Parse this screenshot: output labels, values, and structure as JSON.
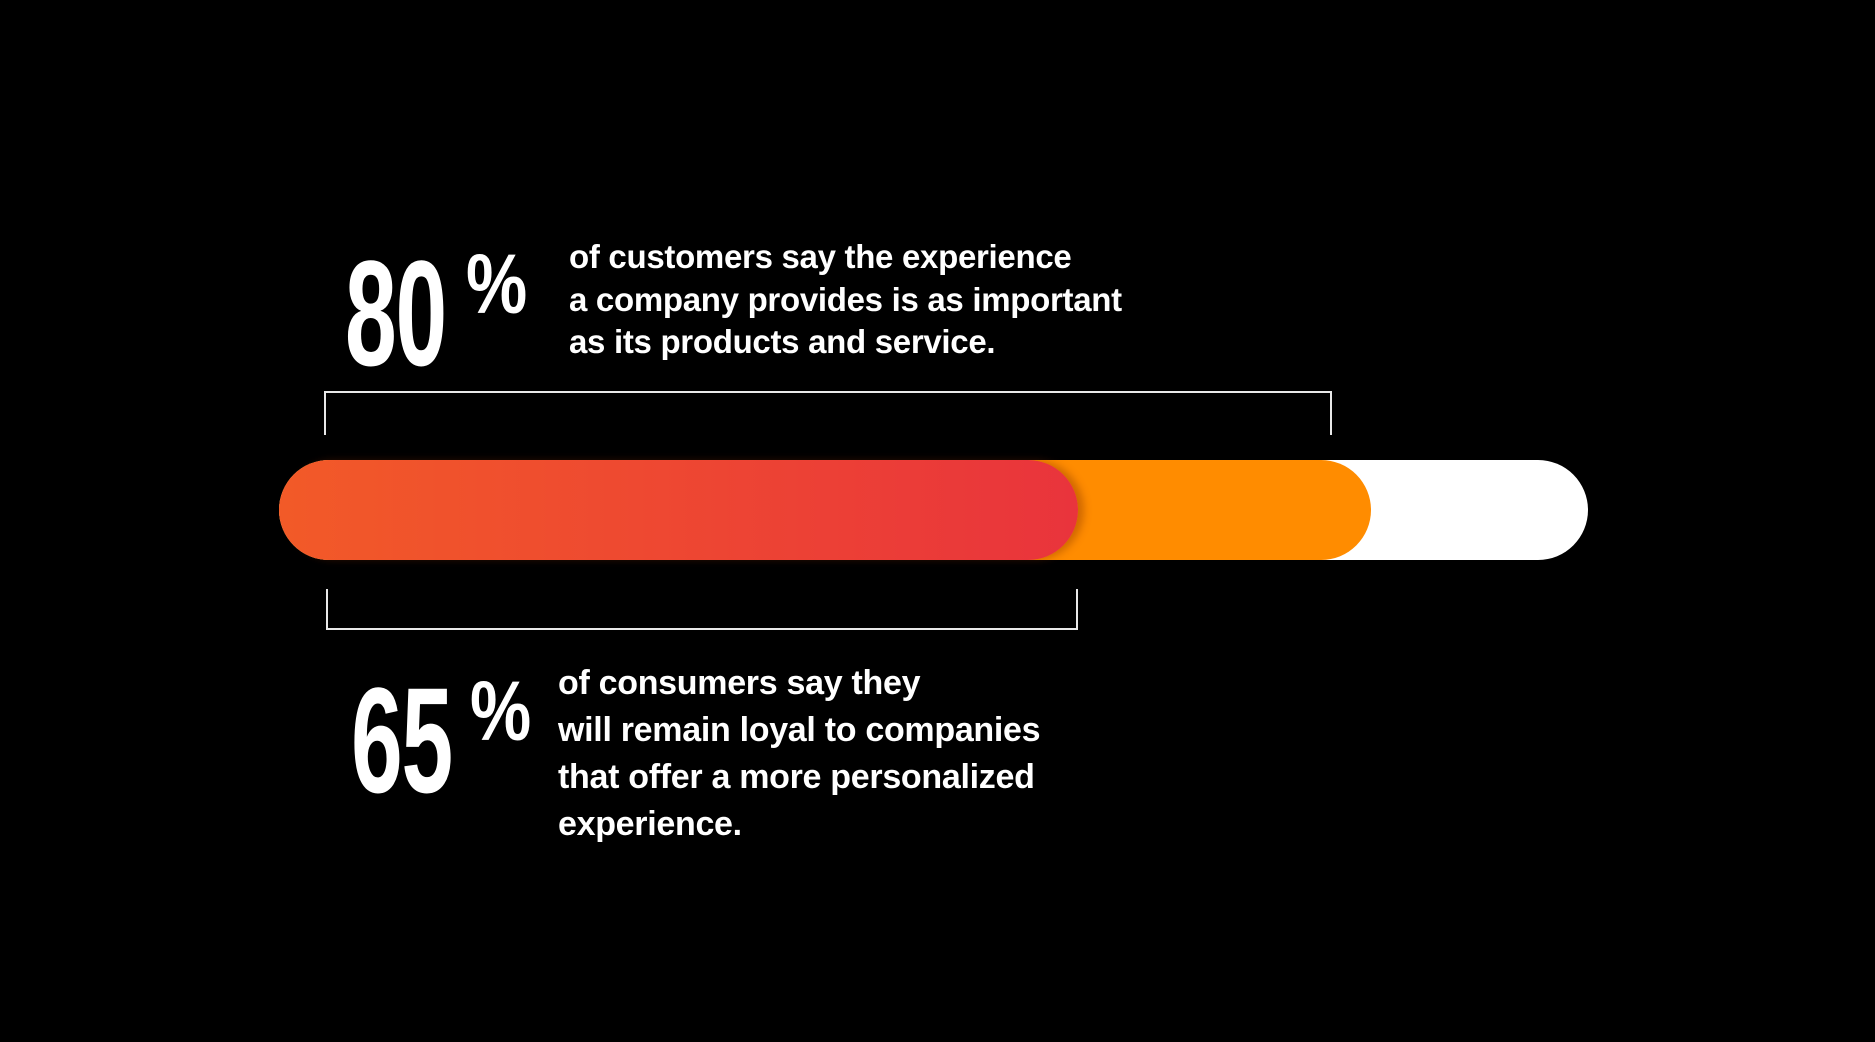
{
  "chart_data": {
    "type": "bar",
    "title": "",
    "orientation": "horizontal-progress",
    "xlim": [
      0,
      100
    ],
    "series": [
      {
        "name": "customers-experience",
        "value": 80,
        "label": "80",
        "unit": "%",
        "color": "#ff8c00",
        "text": [
          "of customers say the experience",
          "a company provides is as important",
          "as its products and service."
        ]
      },
      {
        "name": "consumers-loyal",
        "value": 65,
        "label": "65",
        "unit": "%",
        "color_start": "#f25a28",
        "color_end": "#e9343c",
        "text": [
          "of consumers say they",
          "will remain loyal to companies",
          "that offer a more personalized",
          "experience."
        ]
      }
    ],
    "track_color": "#ffffff"
  }
}
